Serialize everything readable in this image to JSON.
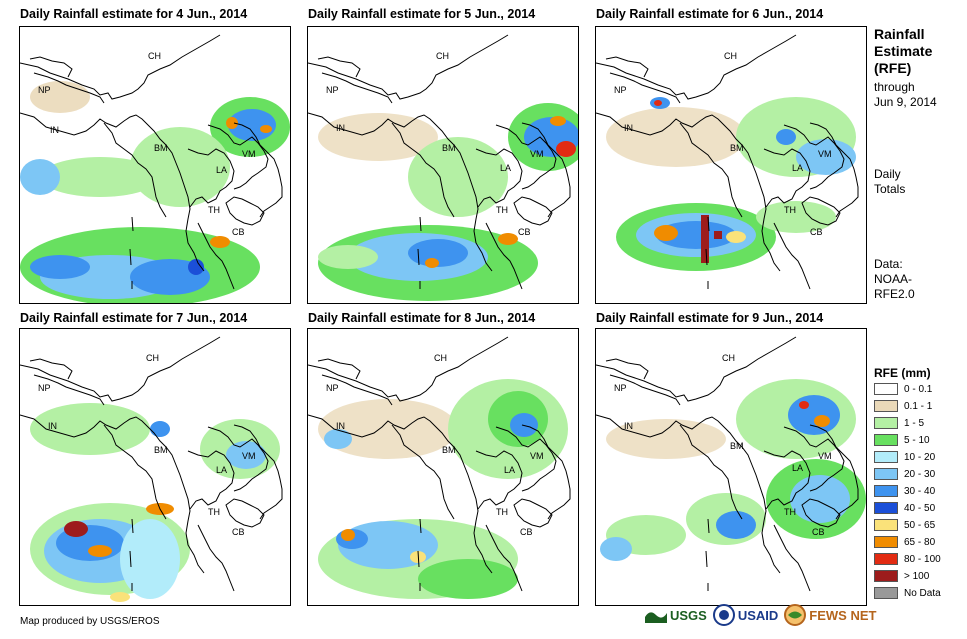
{
  "panels": [
    {
      "title": "Daily Rainfall estimate for 4 Jun., 2014",
      "date": "4 Jun., 2014"
    },
    {
      "title": "Daily Rainfall estimate for 5 Jun., 2014",
      "date": "5 Jun., 2014"
    },
    {
      "title": "Daily Rainfall estimate for 6 Jun., 2014",
      "date": "6 Jun., 2014"
    },
    {
      "title": "Daily Rainfall estimate for 7 Jun., 2014",
      "date": "7 Jun., 2014"
    },
    {
      "title": "Daily Rainfall estimate for 8 Jun., 2014",
      "date": "8 Jun., 2014"
    },
    {
      "title": "Daily Rainfall estimate for 9 Jun., 2014",
      "date": "9 Jun., 2014"
    }
  ],
  "country_labels": {
    "ch": "CH",
    "np": "NP",
    "in": "IN",
    "bm": "BM",
    "la": "LA",
    "vm": "VM",
    "th": "TH",
    "cb": "CB"
  },
  "sidebar": {
    "title_line1": "Rainfall",
    "title_line2": "Estimate",
    "title_line3": "(RFE)",
    "through_label": "through",
    "through_date": "Jun 9, 2014",
    "daily_line1": "Daily",
    "daily_line2": "Totals",
    "data_line1": "Data:",
    "data_line2": "NOAA-",
    "data_line3": "RFE2.0"
  },
  "legend": {
    "title": "RFE (mm)",
    "items": [
      {
        "label": "0 - 0.1",
        "color": "#ffffff"
      },
      {
        "label": "0.1 - 1",
        "color": "#ead9b9"
      },
      {
        "label": "1 - 5",
        "color": "#b4f0a4"
      },
      {
        "label": "5 - 10",
        "color": "#68e060"
      },
      {
        "label": "10 - 20",
        "color": "#b2ecfa"
      },
      {
        "label": "20 - 30",
        "color": "#7dc6f5"
      },
      {
        "label": "30 - 40",
        "color": "#3e93ef"
      },
      {
        "label": "40 - 50",
        "color": "#1b4fd8"
      },
      {
        "label": "50 - 65",
        "color": "#fae27a"
      },
      {
        "label": "65 - 80",
        "color": "#f08c00"
      },
      {
        "label": "80 - 100",
        "color": "#e22b12"
      },
      {
        "label": "> 100",
        "color": "#9d1c1c"
      },
      {
        "label": "No Data",
        "color": "#999999"
      }
    ]
  },
  "footer": {
    "credit": "Map produced by USGS/EROS"
  },
  "logos": {
    "usgs": "USGS",
    "usaid": "USAID",
    "fewsnet": "FEWS NET"
  }
}
